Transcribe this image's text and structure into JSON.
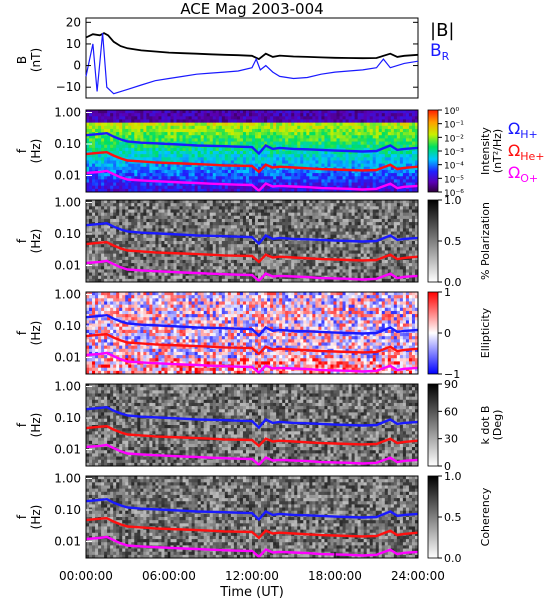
{
  "title": "ACE Mag 2003-004",
  "colors": {
    "black": "#000000",
    "blue": "#1a1aff",
    "red": "#ff1010",
    "magenta": "#ff00ff"
  },
  "chart_data": {
    "type": "spectrogram-stack",
    "x": {
      "label": "Time (UT)",
      "range_hours": [
        0,
        24
      ],
      "ticks": [
        0,
        6,
        12,
        18,
        24
      ],
      "tick_labels": [
        "00:00:00",
        "06:00:00",
        "12:00:00",
        "18:00:00",
        "24:00:00"
      ]
    },
    "line_panel": {
      "ylabel": "B",
      "yunit": "(nT)",
      "ylim": [
        -15,
        22
      ],
      "yticks": [
        -10,
        0,
        10,
        20
      ],
      "ytick_labels": [
        "−10",
        "0",
        "10",
        "20"
      ],
      "legend": [
        {
          "text": "|B|",
          "color": "#000000"
        },
        {
          "text": "B",
          "sub": "R",
          "color": "#1a1aff"
        }
      ],
      "series": [
        {
          "name": "|B|",
          "color": "#000000",
          "points": [
            [
              0,
              13
            ],
            [
              0.5,
              14.5
            ],
            [
              1,
              14
            ],
            [
              1.3,
              15
            ],
            [
              1.6,
              14
            ],
            [
              2,
              11
            ],
            [
              2.5,
              9
            ],
            [
              3,
              8
            ],
            [
              4,
              7
            ],
            [
              5,
              6.5
            ],
            [
              6,
              6
            ],
            [
              7,
              5.7
            ],
            [
              8,
              5.5
            ],
            [
              9,
              5.2
            ],
            [
              10,
              5
            ],
            [
              11,
              4.8
            ],
            [
              12,
              4.5
            ],
            [
              12.5,
              3
            ],
            [
              13,
              5.5
            ],
            [
              13.5,
              4
            ],
            [
              14,
              4.6
            ],
            [
              15,
              4.2
            ],
            [
              16,
              4
            ],
            [
              17,
              3.8
            ],
            [
              18,
              3.6
            ],
            [
              19,
              3.5
            ],
            [
              20,
              3.4
            ],
            [
              21,
              3.5
            ],
            [
              22,
              5.5
            ],
            [
              22.5,
              4
            ],
            [
              23,
              4.5
            ],
            [
              24,
              5
            ]
          ]
        },
        {
          "name": "B_R",
          "color": "#1a1aff",
          "points": [
            [
              0,
              -5
            ],
            [
              0.5,
              10
            ],
            [
              0.8,
              -12
            ],
            [
              1.2,
              15
            ],
            [
              1.5,
              -10
            ],
            [
              2,
              -13
            ],
            [
              3,
              -11
            ],
            [
              4,
              -9
            ],
            [
              5,
              -7
            ],
            [
              6,
              -6
            ],
            [
              7,
              -5
            ],
            [
              8,
              -4
            ],
            [
              9,
              -3.5
            ],
            [
              10,
              -3
            ],
            [
              11,
              -2.5
            ],
            [
              12,
              -1
            ],
            [
              12.3,
              3
            ],
            [
              12.6,
              -2
            ],
            [
              13,
              0
            ],
            [
              13.5,
              -3
            ],
            [
              14,
              -5
            ],
            [
              15,
              -6
            ],
            [
              16,
              -5.5
            ],
            [
              17,
              -4
            ],
            [
              18,
              -3
            ],
            [
              19,
              -2.5
            ],
            [
              20,
              -2
            ],
            [
              21,
              -1
            ],
            [
              21.5,
              3
            ],
            [
              22,
              -1
            ],
            [
              23,
              1
            ],
            [
              24,
              2
            ]
          ]
        }
      ]
    },
    "spectrogram_panels": [
      {
        "name": "power",
        "ylabel": "f",
        "yunit": "(Hz)",
        "colorbar_label": "Intensity",
        "colorbar_unit": "(nT²/Hz)",
        "colorbar_ticks": [
          "10⁰",
          "10⁻¹",
          "10⁻²",
          "10⁻³",
          "10⁻⁴",
          "10⁻⁵",
          "10⁻⁶"
        ],
        "colormap": "rainbow"
      },
      {
        "name": "polarization",
        "ylabel": "f",
        "yunit": "(Hz)",
        "colorbar_label": "% Polarization",
        "colorbar_ticks": [
          "1.0",
          "0.5",
          "0.0"
        ],
        "colormap": "gray"
      },
      {
        "name": "ellipticity",
        "ylabel": "f",
        "yunit": "(Hz)",
        "colorbar_label": "Ellipticity",
        "colorbar_ticks": [
          "1",
          "0",
          "−1"
        ],
        "colormap": "bwr"
      },
      {
        "name": "kdotb",
        "ylabel": "f",
        "yunit": "(Hz)",
        "colorbar_label": "k dot B",
        "colorbar_unit": "(Deg)",
        "colorbar_ticks": [
          "90",
          "60",
          "30",
          "0"
        ],
        "colormap": "gray"
      },
      {
        "name": "coherency",
        "ylabel": "f",
        "yunit": "(Hz)",
        "colorbar_label": "Coherency",
        "colorbar_ticks": [
          "1.0",
          "0.5",
          "0.0"
        ],
        "colormap": "gray"
      }
    ],
    "freq_axis": {
      "scale": "log",
      "range": [
        0.003,
        1.2
      ],
      "ticks": [
        1.0,
        0.1,
        0.01
      ],
      "tick_labels": [
        "1.00",
        "0.10",
        "0.01"
      ]
    },
    "gyrofrequency_legend": [
      {
        "text": "Ω",
        "sub": "H+",
        "color": "#1a1aff"
      },
      {
        "text": "Ω",
        "sub": "He+",
        "color": "#ff1010"
      },
      {
        "text": "Ω",
        "sub": "O+",
        "color": "#ff00ff"
      }
    ],
    "gyrofrequency_lines": [
      {
        "name": "ΩH+",
        "color": "#1a1aff",
        "points": [
          [
            0,
            0.19
          ],
          [
            1,
            0.21
          ],
          [
            1.5,
            0.22
          ],
          [
            2,
            0.17
          ],
          [
            2.5,
            0.14
          ],
          [
            3,
            0.12
          ],
          [
            4,
            0.11
          ],
          [
            5,
            0.105
          ],
          [
            6,
            0.1
          ],
          [
            7,
            0.095
          ],
          [
            8,
            0.09
          ],
          [
            9,
            0.088
          ],
          [
            10,
            0.085
          ],
          [
            11,
            0.082
          ],
          [
            12,
            0.08
          ],
          [
            12.5,
            0.05
          ],
          [
            13,
            0.09
          ],
          [
            13.5,
            0.07
          ],
          [
            14,
            0.075
          ],
          [
            15,
            0.07
          ],
          [
            16,
            0.068
          ],
          [
            17,
            0.065
          ],
          [
            18,
            0.062
          ],
          [
            19,
            0.06
          ],
          [
            20,
            0.058
          ],
          [
            21,
            0.06
          ],
          [
            22,
            0.09
          ],
          [
            22.5,
            0.065
          ],
          [
            23,
            0.07
          ],
          [
            24,
            0.075
          ]
        ]
      },
      {
        "name": "ΩHe+",
        "color": "#ff1010",
        "points": [
          [
            0,
            0.048
          ],
          [
            1,
            0.053
          ],
          [
            1.5,
            0.055
          ],
          [
            2,
            0.043
          ],
          [
            2.5,
            0.035
          ],
          [
            3,
            0.03
          ],
          [
            4,
            0.028
          ],
          [
            5,
            0.026
          ],
          [
            6,
            0.025
          ],
          [
            7,
            0.024
          ],
          [
            8,
            0.023
          ],
          [
            9,
            0.022
          ],
          [
            10,
            0.021
          ],
          [
            11,
            0.0205
          ],
          [
            12,
            0.02
          ],
          [
            12.5,
            0.013
          ],
          [
            13,
            0.022
          ],
          [
            13.5,
            0.018
          ],
          [
            14,
            0.019
          ],
          [
            15,
            0.018
          ],
          [
            16,
            0.017
          ],
          [
            17,
            0.016
          ],
          [
            18,
            0.0155
          ],
          [
            19,
            0.015
          ],
          [
            20,
            0.0145
          ],
          [
            21,
            0.015
          ],
          [
            22,
            0.022
          ],
          [
            22.5,
            0.016
          ],
          [
            23,
            0.0175
          ],
          [
            24,
            0.019
          ]
        ]
      },
      {
        "name": "ΩO+",
        "color": "#ff00ff",
        "points": [
          [
            0,
            0.012
          ],
          [
            1,
            0.013
          ],
          [
            1.5,
            0.014
          ],
          [
            2,
            0.011
          ],
          [
            2.5,
            0.0088
          ],
          [
            3,
            0.0075
          ],
          [
            4,
            0.007
          ],
          [
            5,
            0.0066
          ],
          [
            6,
            0.0063
          ],
          [
            7,
            0.006
          ],
          [
            8,
            0.0058
          ],
          [
            9,
            0.0055
          ],
          [
            10,
            0.0053
          ],
          [
            11,
            0.0051
          ],
          [
            12,
            0.005
          ],
          [
            12.5,
            0.0033
          ],
          [
            13,
            0.0056
          ],
          [
            13.5,
            0.0045
          ],
          [
            14,
            0.0047
          ],
          [
            15,
            0.0045
          ],
          [
            16,
            0.0043
          ],
          [
            17,
            0.004
          ],
          [
            18,
            0.0039
          ],
          [
            19,
            0.0038
          ],
          [
            20,
            0.0036
          ],
          [
            21,
            0.0038
          ],
          [
            22,
            0.0055
          ],
          [
            22.5,
            0.004
          ],
          [
            23,
            0.0044
          ],
          [
            24,
            0.0047
          ]
        ]
      }
    ]
  }
}
